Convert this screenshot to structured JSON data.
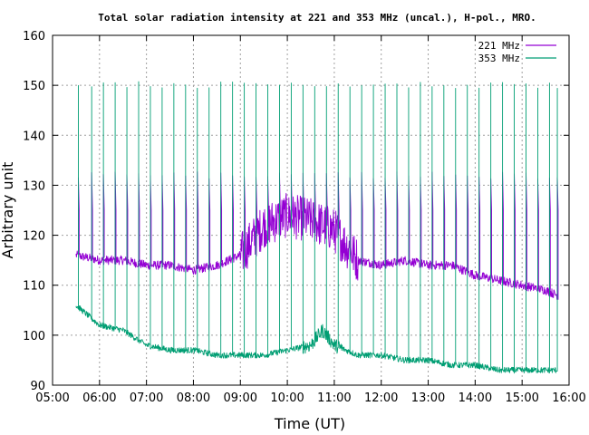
{
  "chart_data": {
    "type": "line",
    "title": "Total solar radiation intensity at 221 and 353 MHz (uncal.), H-pol., MRO.",
    "xlabel": "Time (UT)",
    "ylabel": "Arbitrary unit",
    "xlim": [
      "05:00",
      "16:00"
    ],
    "ylim": [
      90,
      160
    ],
    "x_ticks": [
      "05:00",
      "06:00",
      "07:00",
      "08:00",
      "09:00",
      "10:00",
      "11:00",
      "12:00",
      "13:00",
      "14:00",
      "15:00",
      "16:00"
    ],
    "y_ticks": [
      "90",
      "100",
      "110",
      "120",
      "130",
      "140",
      "150",
      "160"
    ],
    "grid": true,
    "legend": "top-right",
    "series": [
      {
        "name": "221 MHz",
        "color": "#9400d3",
        "x": [
          "05:30",
          "06:00",
          "06:30",
          "07:00",
          "07:30",
          "08:00",
          "08:30",
          "09:00",
          "09:30",
          "10:00",
          "10:30",
          "11:00",
          "11:30",
          "12:00",
          "12:30",
          "13:00",
          "13:30",
          "14:00",
          "14:30",
          "15:00",
          "15:30",
          "15:45"
        ],
        "values": [
          116,
          115,
          115,
          114,
          114,
          113,
          114,
          116,
          122,
          124,
          123,
          121,
          115,
          114,
          115,
          114,
          114,
          112,
          111,
          110,
          109,
          108
        ],
        "spikes": [
          "05:33",
          "05:50",
          "06:05",
          "06:20",
          "06:35",
          "06:50",
          "07:05",
          "07:20",
          "07:35",
          "07:50",
          "08:05",
          "08:20",
          "08:35",
          "08:50",
          "09:05",
          "09:20",
          "09:35",
          "09:50",
          "10:05",
          "10:20",
          "10:35",
          "10:50",
          "11:05",
          "11:20",
          "11:35",
          "11:50",
          "12:05",
          "12:20",
          "12:35",
          "12:50",
          "13:05",
          "13:20",
          "13:35",
          "13:50",
          "14:05",
          "14:20",
          "14:35",
          "14:50",
          "15:05",
          "15:20",
          "15:35",
          "15:45"
        ],
        "spike_peak": 132,
        "spike_base": 125
      },
      {
        "name": "353 MHz",
        "color": "#009e73",
        "x": [
          "05:30",
          "05:45",
          "06:00",
          "06:30",
          "07:00",
          "07:30",
          "08:00",
          "08:30",
          "09:00",
          "09:30",
          "10:00",
          "10:30",
          "10:45",
          "11:00",
          "11:30",
          "12:00",
          "12:30",
          "13:00",
          "13:30",
          "14:00",
          "14:30",
          "15:00",
          "15:30",
          "15:45"
        ],
        "values": [
          106,
          104,
          102,
          101,
          98,
          97,
          97,
          96,
          96,
          96,
          97,
          98,
          101,
          98,
          96,
          96,
          95,
          95,
          94,
          94,
          93,
          93,
          93,
          93
        ],
        "spikes": [
          "05:33",
          "05:50",
          "06:05",
          "06:20",
          "06:35",
          "06:50",
          "07:05",
          "07:20",
          "07:35",
          "07:50",
          "08:05",
          "08:20",
          "08:35",
          "08:50",
          "09:05",
          "09:20",
          "09:35",
          "09:50",
          "10:05",
          "10:20",
          "10:35",
          "10:50",
          "11:05",
          "11:20",
          "11:35",
          "11:50",
          "12:05",
          "12:20",
          "12:35",
          "12:50",
          "13:05",
          "13:20",
          "13:35",
          "13:50",
          "14:05",
          "14:20",
          "14:35",
          "14:50",
          "15:05",
          "15:20",
          "15:35",
          "15:45"
        ],
        "spike_peak": 150
      }
    ]
  }
}
